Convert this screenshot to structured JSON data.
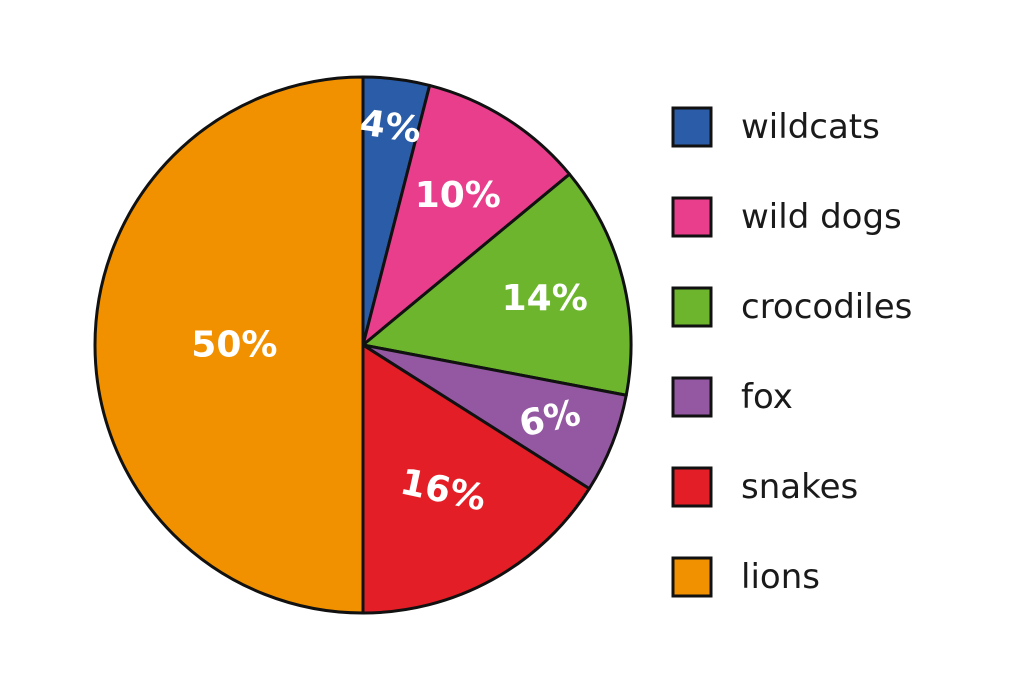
{
  "chart_data": {
    "type": "pie",
    "categories": [
      "wildcats",
      "wild dogs",
      "crocodiles",
      "fox",
      "snakes",
      "lions"
    ],
    "values": [
      4,
      10,
      14,
      6,
      16,
      50
    ],
    "data_labels": [
      "4%",
      "10%",
      "14%",
      "6%",
      "16%",
      "50%"
    ],
    "colors": [
      "#2a5ca8",
      "#e83e8c",
      "#6cb52d",
      "#9458a2",
      "#e41e26",
      "#f29100"
    ],
    "start_angle_deg": 0,
    "direction": "clockwise",
    "legend_position": "right"
  }
}
